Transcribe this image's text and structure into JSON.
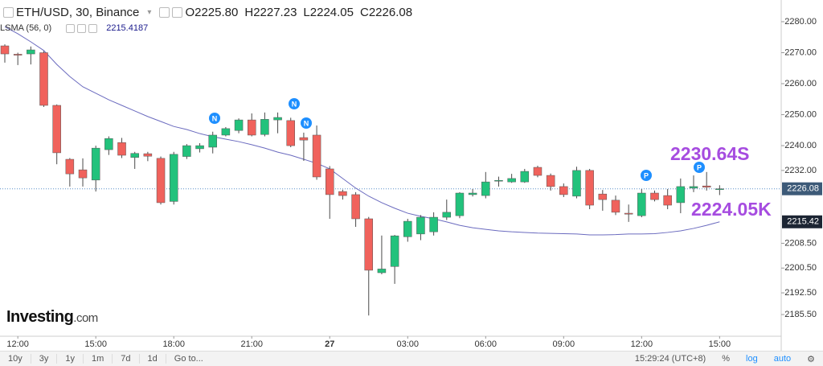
{
  "header": {
    "symbol": "ETH/USD, 30, Binance",
    "ohlc": [
      {
        "key": "O",
        "value": "2225.80"
      },
      {
        "key": "H",
        "value": "2227.23"
      },
      {
        "key": "L",
        "value": "2224.05"
      },
      {
        "key": "C",
        "value": "2226.08"
      }
    ],
    "indicator": "LSMA (56, 0)",
    "indicator_value": "2215.4187"
  },
  "logo": {
    "brand": "Investing",
    "suffix": ".com"
  },
  "toolbar": {
    "ranges": [
      "10y",
      "3y",
      "1y",
      "1m",
      "7d",
      "1d"
    ],
    "goto": "Go to...",
    "clock": "15:29:24 (UTC+8)",
    "options": [
      "%",
      "log",
      "auto"
    ]
  },
  "chart_data": {
    "type": "candlestick",
    "categories": [
      null,
      "12:00",
      null,
      null,
      null,
      null,
      null,
      "15:00",
      null,
      null,
      null,
      null,
      null,
      "18:00",
      null,
      null,
      null,
      null,
      null,
      "21:00",
      null,
      null,
      null,
      null,
      null,
      "27",
      null,
      null,
      null,
      null,
      null,
      "03:00",
      null,
      null,
      null,
      null,
      null,
      "06:00",
      null,
      null,
      null,
      null,
      null,
      "09:00",
      null,
      null,
      null,
      null,
      null,
      "12:00",
      null,
      null,
      null,
      null,
      null,
      "15:00"
    ],
    "open": [
      2272.2,
      2269.5,
      2269.6,
      2270,
      2253,
      2235.6,
      2232.2,
      2228.9,
      2238.7,
      2241,
      2236.2,
      2237.4,
      2235.9,
      2222,
      2236.5,
      2239,
      2239.5,
      2243.4,
      2244.9,
      2248.3,
      2243.6,
      2248.3,
      2248.1,
      2242.6,
      2243.4,
      2232.5,
      2225.2,
      2224.2,
      2216.4,
      2199,
      2201,
      2210.6,
      2211.5,
      2212.2,
      2216.9,
      2217.4,
      2224.2,
      2223.9,
      2228.6,
      2228.3,
      2228.3,
      2233,
      2230.4,
      2226.8,
      2223.7,
      2232,
      2224.4,
      2222.4,
      2218.2,
      2217.4,
      2224.7,
      2223.9,
      2221.6,
      2226.3,
      2227,
      2225.8
    ],
    "high": [
      2272.7,
      2270,
      2272,
      2270.5,
      2253.3,
      2236,
      2235.9,
      2240,
      2243,
      2242.5,
      2238,
      2238,
      2236.5,
      2238,
      2240.5,
      2240.8,
      2244.5,
      2246,
      2248.8,
      2250.4,
      2250.7,
      2250.7,
      2249,
      2244.2,
      2246.5,
      2233.4,
      2225.8,
      2225,
      2217,
      2211,
      2211.2,
      2216.4,
      2217.6,
      2218.5,
      2222.6,
      2225,
      2226,
      2231.5,
      2230,
      2230.9,
      2232.5,
      2233.5,
      2231,
      2227.8,
      2233.2,
      2232.5,
      2225.7,
      2223.9,
      2221,
      2226,
      2225.5,
      2226,
      2229.4,
      2230.4,
      2231.5,
      2227.23
    ],
    "low": [
      2266.8,
      2266,
      2266.2,
      2252.5,
      2234,
      2226.8,
      2226.8,
      2225.2,
      2237,
      2236,
      2232.5,
      2235,
      2221,
      2221,
      2235.7,
      2237.8,
      2237.5,
      2243,
      2244,
      2243,
      2243,
      2244,
      2239.5,
      2235.1,
      2229,
      2216.4,
      2222.6,
      2213.8,
      2185.2,
      2198.5,
      2195.4,
      2209,
      2209.5,
      2211,
      2216,
      2216.6,
      2223.6,
      2223,
      2226.8,
      2228,
      2228,
      2229.8,
      2225.5,
      2223.4,
      2223,
      2219.5,
      2219,
      2217.6,
      2215.4,
      2216.9,
      2222,
      2219.5,
      2218.2,
      2225,
      2225.5,
      2224.05
    ],
    "close": [
      2269.6,
      2269.2,
      2270.9,
      2253,
      2237.7,
      2230.9,
      2229.6,
      2239.2,
      2242.3,
      2236.9,
      2237.5,
      2236.6,
      2221.6,
      2237.2,
      2240,
      2240,
      2243.4,
      2245.5,
      2248.3,
      2243.4,
      2248.5,
      2249.1,
      2240,
      2241.8,
      2229.9,
      2224.2,
      2223.9,
      2216.4,
      2199.8,
      2200.2,
      2210.9,
      2215.6,
      2216.9,
      2216.9,
      2218.5,
      2224.7,
      2224.7,
      2228.3,
      2228.8,
      2229.4,
      2231.7,
      2230.4,
      2226.8,
      2224.2,
      2232,
      2220.8,
      2222.6,
      2218.5,
      2217.9,
      2224.7,
      2222.6,
      2220.8,
      2226.8,
      2226.8,
      2226.6,
      2226.08
    ],
    "up_color": "#22c27c",
    "down_color": "#f0625c",
    "wick_color": "#4a4a4a",
    "overlay": {
      "color": "#6b6bbf",
      "values": [
        2278.4,
        2276.1,
        2273.5,
        2270.7,
        2266.2,
        2262.3,
        2259.0,
        2256.9,
        2254.8,
        2253.0,
        2251.2,
        2249.4,
        2247.8,
        2246.2,
        2245.2,
        2243.9,
        2242.9,
        2242.1,
        2241.3,
        2240.3,
        2239.2,
        2237.9,
        2236.9,
        2235.6,
        2234.3,
        2232.5,
        2229.4,
        2226.3,
        2223.7,
        2221.6,
        2219.8,
        2218.2,
        2217.2,
        2216.4,
        2215.4,
        2214.3,
        2213.5,
        2213.0,
        2212.5,
        2212.2,
        2212.0,
        2211.8,
        2211.7,
        2211.6,
        2211.5,
        2211.2,
        2211.2,
        2211.3,
        2211.5,
        2211.5,
        2211.6,
        2212.0,
        2212.5,
        2213.3,
        2214.3,
        2215.4187
      ]
    },
    "ylim": [
      2178.5,
      2287
    ],
    "yticks": [
      {
        "value": 2280,
        "label": "2280.00"
      },
      {
        "value": 2270,
        "label": "2270.00"
      },
      {
        "value": 2260,
        "label": "2260.00"
      },
      {
        "value": 2250,
        "label": "2250.00"
      },
      {
        "value": 2240,
        "label": "2240.00"
      },
      {
        "value": 2232,
        "label": "2232.00"
      },
      {
        "value": 2208.5,
        "label": "2208.50"
      },
      {
        "value": 2200.5,
        "label": "2200.50"
      },
      {
        "value": 2192.5,
        "label": "2192.50"
      },
      {
        "value": 2185.5,
        "label": "2185.50"
      }
    ],
    "grid": false,
    "price_labels": [
      {
        "value": 2226.08,
        "label": "2226.08",
        "color": "#3d5a78"
      },
      {
        "value": 2215.42,
        "label": "2215.42",
        "color": "#1c2533"
      }
    ],
    "annotations": [
      "2230.64S",
      "2224.05K"
    ],
    "annotation_color": "#a64ce0",
    "event_markers": [
      "N",
      "N",
      "N",
      "P",
      "P"
    ],
    "marker_color": "#1e8fff"
  }
}
